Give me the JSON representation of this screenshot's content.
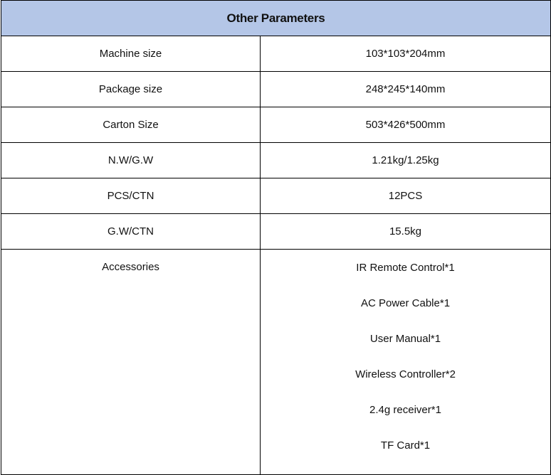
{
  "table": {
    "title": "Other Parameters",
    "rows": [
      {
        "label": "Machine size",
        "value": "103*103*204mm"
      },
      {
        "label": "Package size",
        "value": "248*245*140mm"
      },
      {
        "label": "Carton Size",
        "value": "503*426*500mm"
      },
      {
        "label": "N.W/G.W",
        "value": "1.21kg/1.25kg"
      },
      {
        "label": "PCS/CTN",
        "value": "12PCS"
      },
      {
        "label": "G.W/CTN",
        "value": "15.5kg"
      }
    ],
    "accessories": {
      "label": "Accessories",
      "items": [
        "IR Remote Control*1",
        "AC Power Cable*1",
        "User Manual*1",
        "Wireless Controller*2",
        "2.4g receiver*1",
        "TF Card*1"
      ]
    }
  }
}
